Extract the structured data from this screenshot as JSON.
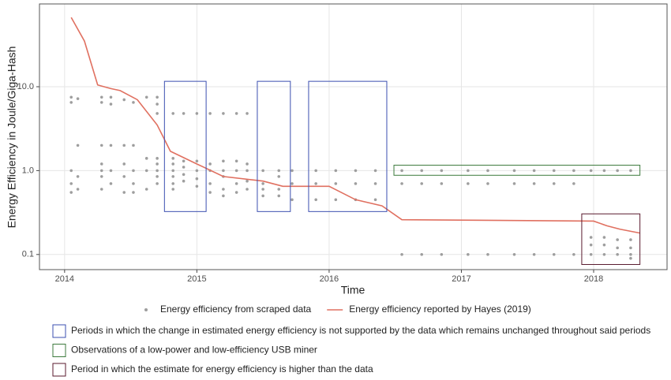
{
  "chart_data": {
    "type": "scatter",
    "y_label": "Energy Efficiency in Joule/Giga-Hash",
    "x_label": "Time",
    "log_y": true,
    "grid": true,
    "xlim": [
      2013.81,
      2018.555
    ],
    "xticks": [
      2014,
      2015,
      2016,
      2017,
      2018
    ],
    "ylim": [
      0.066,
      97
    ],
    "yticks": [
      {
        "value": 10,
        "label": "10.0"
      },
      {
        "value": 1,
        "label": "1.0"
      },
      {
        "value": 0.1,
        "label": "0.1"
      }
    ],
    "legend": "bottom",
    "series": [
      {
        "name": "Energy efficiency from scraped data",
        "type": "scatter",
        "color": "#9e9e9e",
        "x": [
          2014.05,
          2014.05,
          2014.05,
          2014.05,
          2014.05,
          2014.1,
          2014.1,
          2014.1,
          2014.1,
          2014.28,
          2014.28,
          2014.28,
          2014.28,
          2014.28,
          2014.28,
          2014.28,
          2014.35,
          2014.35,
          2014.35,
          2014.35,
          2014.35,
          2014.45,
          2014.45,
          2014.45,
          2014.45,
          2014.45,
          2014.52,
          2014.52,
          2014.52,
          2014.52,
          2014.52,
          2014.62,
          2014.62,
          2014.62,
          2014.62,
          2014.7,
          2014.7,
          2014.7,
          2014.7,
          2014.7,
          2014.7,
          2014.7,
          2014.7,
          2014.82,
          2014.82,
          2014.82,
          2014.82,
          2014.82,
          2014.82,
          2014.82,
          2014.9,
          2014.9,
          2014.9,
          2014.9,
          2014.9,
          2015.0,
          2015.0,
          2015.0,
          2015.0,
          2015.0,
          2015.1,
          2015.1,
          2015.1,
          2015.1,
          2015.1,
          2015.2,
          2015.2,
          2015.2,
          2015.2,
          2015.2,
          2015.2,
          2015.3,
          2015.3,
          2015.3,
          2015.3,
          2015.3,
          2015.38,
          2015.38,
          2015.38,
          2015.38,
          2015.38,
          2015.5,
          2015.5,
          2015.5,
          2015.5,
          2015.62,
          2015.62,
          2015.62,
          2015.62,
          2015.72,
          2015.72,
          2015.72,
          2015.9,
          2015.9,
          2015.9,
          2016.05,
          2016.05,
          2016.05,
          2016.2,
          2016.2,
          2016.2,
          2016.35,
          2016.35,
          2016.35,
          2016.55,
          2016.55,
          2016.55,
          2016.7,
          2016.7,
          2016.7,
          2016.85,
          2016.85,
          2016.85,
          2017.05,
          2017.05,
          2017.05,
          2017.2,
          2017.2,
          2017.2,
          2017.4,
          2017.4,
          2017.4,
          2017.55,
          2017.55,
          2017.55,
          2017.7,
          2017.7,
          2017.7,
          2017.85,
          2017.85,
          2017.85,
          2017.98,
          2017.98,
          2017.98,
          2017.98,
          2018.08,
          2018.08,
          2018.08,
          2018.08,
          2018.18,
          2018.18,
          2018.18,
          2018.18,
          2018.28,
          2018.28,
          2018.28,
          2018.28,
          2018.28
        ],
        "values": [
          7.5,
          6.5,
          1,
          0.7,
          0.55,
          7.2,
          2,
          0.85,
          0.6,
          7.5,
          6.5,
          2,
          1.2,
          1,
          0.85,
          0.6,
          7.5,
          6.2,
          2,
          1,
          0.7,
          7.0,
          2,
          1.2,
          0.85,
          0.55,
          6.5,
          2,
          1,
          0.7,
          0.55,
          7.5,
          1.4,
          1,
          0.6,
          7.5,
          6.2,
          4.8,
          1.4,
          1.2,
          1,
          0.85,
          0.7,
          4.8,
          1.4,
          1.2,
          1,
          0.85,
          0.7,
          0.6,
          4.8,
          1.3,
          1.1,
          0.9,
          0.75,
          4.8,
          1.3,
          1,
          0.8,
          0.65,
          4.8,
          1.2,
          1,
          0.7,
          0.55,
          4.8,
          1.3,
          1,
          0.85,
          0.6,
          0.5,
          4.8,
          1.3,
          1,
          0.7,
          0.55,
          4.8,
          1.2,
          1,
          0.75,
          0.6,
          1,
          0.7,
          0.6,
          0.5,
          1,
          0.85,
          0.6,
          0.5,
          1,
          0.7,
          0.45,
          1,
          0.7,
          0.45,
          1,
          0.7,
          0.45,
          1,
          0.7,
          0.45,
          1,
          0.7,
          0.45,
          1,
          0.7,
          0.1,
          1,
          0.7,
          0.1,
          1,
          0.7,
          0.1,
          1,
          0.7,
          0.1,
          1,
          0.7,
          0.1,
          1,
          0.7,
          0.1,
          1,
          0.7,
          0.1,
          1,
          0.7,
          0.1,
          1,
          0.7,
          0.1,
          1,
          0.16,
          0.13,
          0.1,
          1,
          0.16,
          0.13,
          0.1,
          1,
          0.15,
          0.12,
          0.1,
          1,
          0.15,
          0.12,
          0.1,
          0.09
        ]
      },
      {
        "name": "Energy efficiency reported by Hayes (2019)",
        "type": "line",
        "color": "#e07060",
        "x": [
          2014.05,
          2014.15,
          2014.25,
          2014.35,
          2014.42,
          2014.55,
          2014.7,
          2014.8,
          2015.0,
          2015.2,
          2015.5,
          2015.65,
          2016.0,
          2016.2,
          2016.4,
          2016.55,
          2018.0,
          2018.1,
          2018.2,
          2018.35
        ],
        "values": [
          67,
          35,
          10.5,
          9.5,
          9,
          7,
          3.5,
          1.7,
          1.2,
          0.85,
          0.75,
          0.65,
          0.65,
          0.45,
          0.38,
          0.26,
          0.25,
          0.22,
          0.2,
          0.18
        ]
      }
    ],
    "annotations": [
      {
        "label": "Periods in which the change in estimated energy efficiency is not supported by the data which remains unchanged throughout said periods",
        "color": "#3b4fb0",
        "regions": [
          {
            "x0": 2014.755,
            "x1": 2015.07,
            "y0": 0.325,
            "y1": 11.6
          },
          {
            "x0": 2015.457,
            "x1": 2015.707,
            "y0": 0.325,
            "y1": 11.6
          },
          {
            "x0": 2015.845,
            "x1": 2016.436,
            "y0": 0.325,
            "y1": 11.6
          }
        ]
      },
      {
        "label": "Observations of a low-power and low-efficiency USB miner",
        "color": "#3c7a3c",
        "regions": [
          {
            "x0": 2016.49,
            "x1": 2018.35,
            "y0": 0.88,
            "y1": 1.16
          }
        ]
      },
      {
        "label": "Period in which the estimate for energy efficiency is higher than the data",
        "color": "#5a1a2e",
        "regions": [
          {
            "x0": 2017.91,
            "x1": 2018.35,
            "y0": 0.076,
            "y1": 0.305
          }
        ]
      }
    ]
  }
}
